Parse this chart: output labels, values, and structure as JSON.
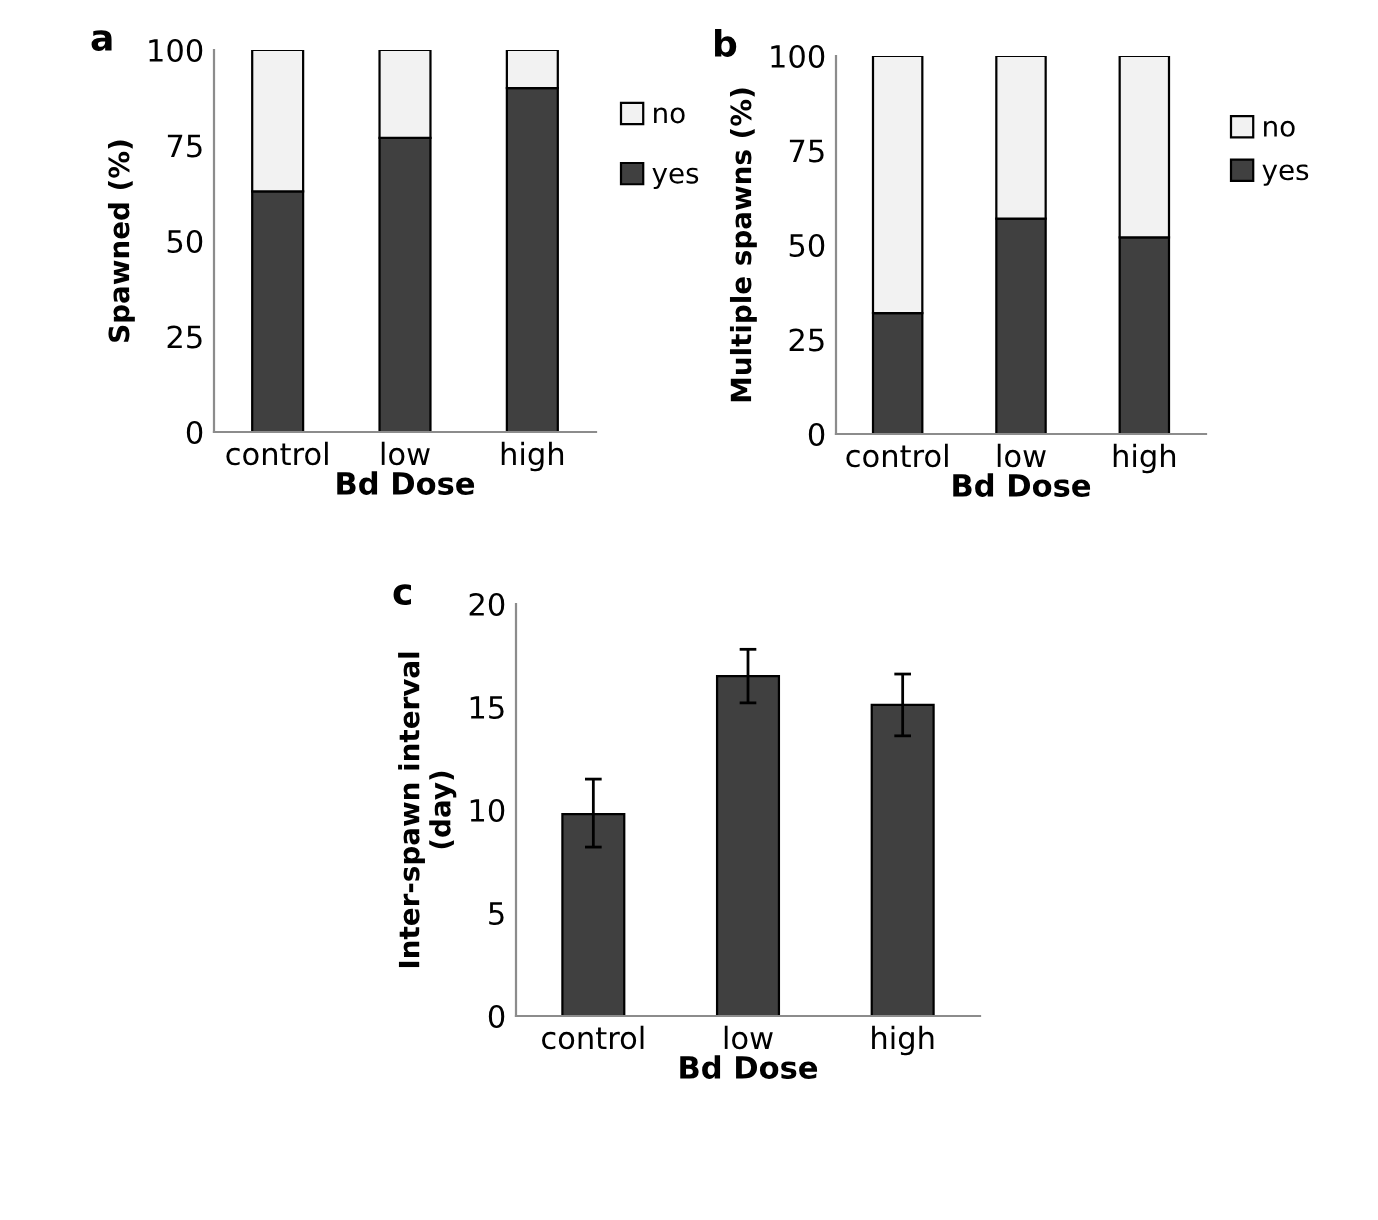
{
  "chart_data": [
    {
      "type": "bar",
      "title": "a",
      "xlabel": "Bd Dose",
      "ylabel": "Spawned (%)",
      "categories": [
        "control",
        "low",
        "high"
      ],
      "stacked": true,
      "ylim": [
        0,
        100
      ],
      "yticks": [
        0,
        25,
        50,
        75,
        100
      ],
      "legend": "right",
      "grid": false,
      "series": [
        {
          "name": "yes",
          "color": "#404040",
          "values": [
            63,
            77,
            90
          ]
        },
        {
          "name": "no",
          "color": "#f2f2f2",
          "values": [
            37,
            23,
            10
          ]
        }
      ]
    },
    {
      "type": "bar",
      "title": "b",
      "xlabel": "Bd Dose",
      "ylabel": "Multiple spawns (%)",
      "categories": [
        "control",
        "low",
        "high"
      ],
      "stacked": true,
      "ylim": [
        0,
        100
      ],
      "yticks": [
        0,
        25,
        50,
        75,
        100
      ],
      "legend": "right",
      "grid": false,
      "series": [
        {
          "name": "yes",
          "color": "#404040",
          "values": [
            32,
            57,
            52
          ]
        },
        {
          "name": "no",
          "color": "#f2f2f2",
          "values": [
            68,
            43,
            48
          ]
        }
      ]
    },
    {
      "type": "bar",
      "title": "c",
      "xlabel": "Bd Dose",
      "ylabel": "Inter-spawn interval\n(day)",
      "categories": [
        "control",
        "low",
        "high"
      ],
      "ylim": [
        0,
        20
      ],
      "yticks": [
        0,
        5,
        10,
        15,
        20
      ],
      "grid": false,
      "series": [
        {
          "color": "#404040",
          "values": [
            9.8,
            16.5,
            15.1
          ],
          "errors": [
            [
              8.2,
              11.5
            ],
            [
              15.2,
              17.8
            ],
            [
              13.6,
              16.6
            ]
          ]
        }
      ]
    }
  ]
}
